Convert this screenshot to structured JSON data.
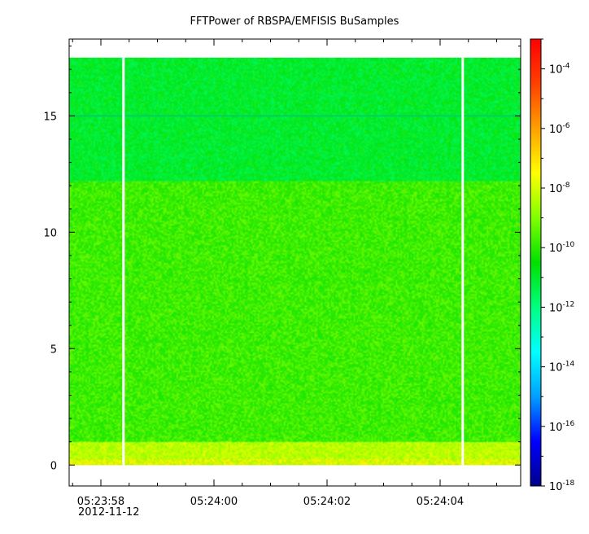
{
  "chart_data": {
    "type": "heatmap",
    "title": "FFTPower of RBSPA/EMFISIS  BuSamples",
    "xlabel": "",
    "ylabel": "",
    "x_tick_labels": [
      "05:23:58",
      "05:24:00",
      "05:24:02",
      "05:24:04"
    ],
    "x_date_label": "2012-11-12",
    "y_ticks": [
      0,
      5,
      10,
      15
    ],
    "ylim": [
      -0.9,
      18.3
    ],
    "y_data_range": [
      0,
      17.5
    ],
    "data_gaps_x": [
      "05:23:58.4",
      "05:24:04.4"
    ],
    "bands": [
      {
        "y_range": [
          0,
          1.0
        ],
        "level_log10": -8.3
      },
      {
        "y_range": [
          1.0,
          12.2
        ],
        "level_log10": -9.8
      },
      {
        "y_range": [
          12.2,
          17.5
        ],
        "level_log10": -11.0
      }
    ],
    "line_at_y": 15.0,
    "colorbar": {
      "scale": "log",
      "range": [
        1e-18,
        0.001
      ],
      "tick_exponents": [
        -4,
        -6,
        -8,
        -10,
        -12,
        -14,
        -16,
        -18
      ],
      "base": "10",
      "colors": [
        "#00008b",
        "#0000ff",
        "#00a0ff",
        "#00ffff",
        "#00ff80",
        "#00e000",
        "#80ff00",
        "#ffff00",
        "#ffa000",
        "#ff4000",
        "#ff0000"
      ]
    }
  }
}
